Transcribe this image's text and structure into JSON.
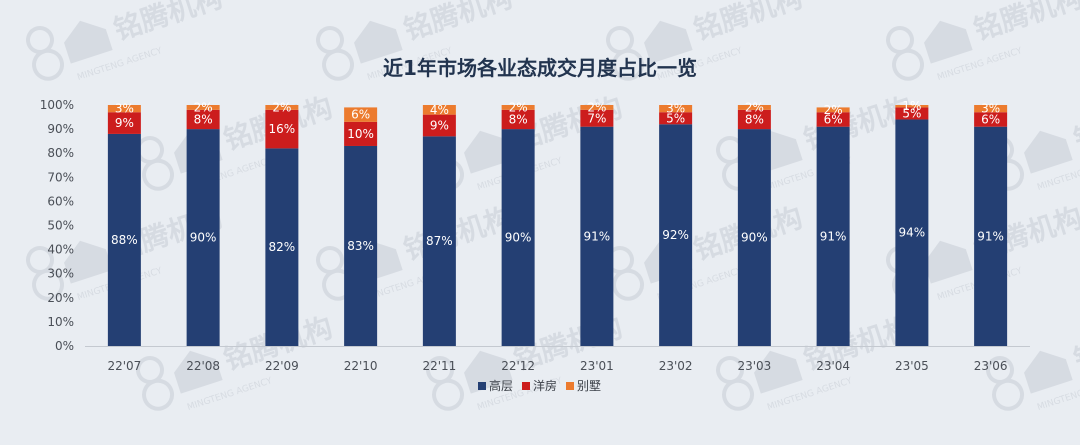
{
  "title": "近1年市场各业态成交月度占比一览",
  "watermark": {
    "text": "铭腾机构",
    "sub": "MINGTENG AGENCY"
  },
  "chart_data": {
    "type": "bar",
    "stacked": true,
    "percent": true,
    "title": "近1年市场各业态成交月度占比一览",
    "categories": [
      "22'07",
      "22'08",
      "22'09",
      "22'10",
      "22'11",
      "22'12",
      "23'01",
      "23'02",
      "23'03",
      "23'04",
      "23'05",
      "23'06"
    ],
    "series": [
      {
        "name": "高层",
        "color": "#243f73",
        "values": [
          88,
          90,
          82,
          83,
          87,
          90,
          91,
          92,
          90,
          91,
          94,
          91
        ]
      },
      {
        "name": "洋房",
        "color": "#cc1d1d",
        "values": [
          9,
          8,
          16,
          10,
          9,
          8,
          7,
          5,
          8,
          6,
          5,
          6
        ]
      },
      {
        "name": "别墅",
        "color": "#ec7b2e",
        "values": [
          3,
          2,
          2,
          6,
          4,
          2,
          2,
          3,
          2,
          2,
          1,
          3
        ]
      }
    ],
    "ylim": [
      0,
      100
    ],
    "yticks": [
      "0%",
      "10%",
      "20%",
      "30%",
      "40%",
      "50%",
      "60%",
      "70%",
      "80%",
      "90%",
      "100%"
    ],
    "legend": "bottom",
    "grid": false
  }
}
